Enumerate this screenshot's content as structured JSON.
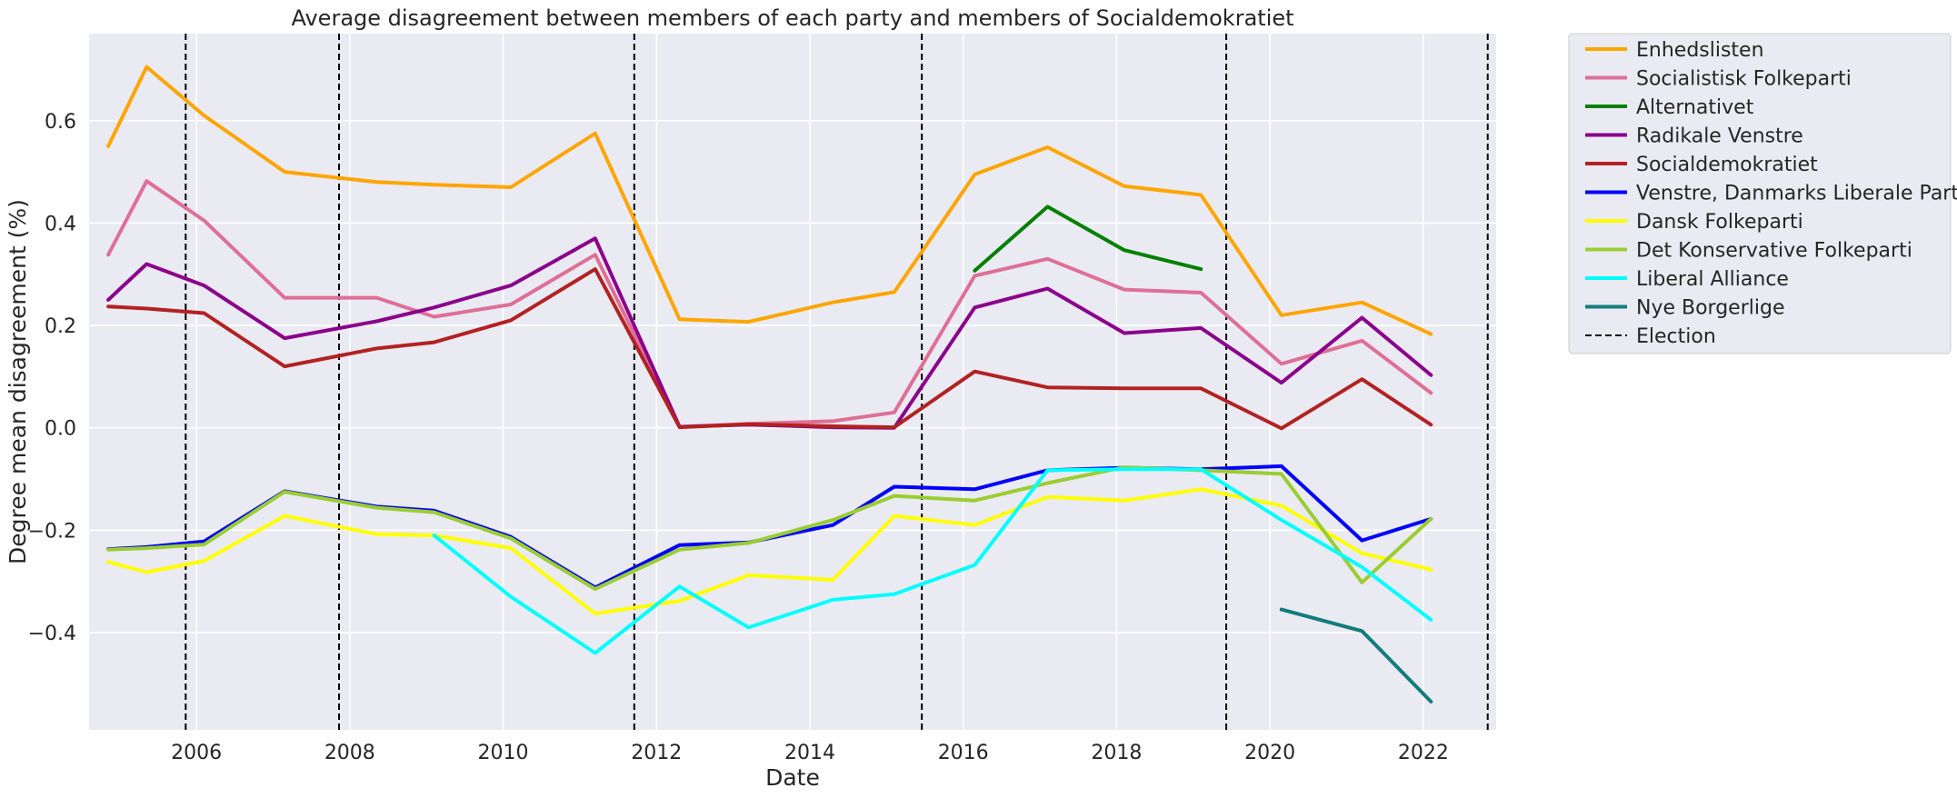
{
  "chart_data": {
    "type": "line",
    "title": "Average disagreement between members of each party and members of Socialdemokratiet",
    "xlabel": "Date",
    "ylabel": "Degree mean disagreement (%)",
    "xlim": [
      2004.6,
      2022.95
    ],
    "ylim": [
      -0.59,
      0.77
    ],
    "xticks": [
      2006,
      2008,
      2010,
      2012,
      2014,
      2016,
      2018,
      2020,
      2022
    ],
    "yticks": [
      -0.4,
      -0.2,
      0.0,
      0.2,
      0.4,
      0.6
    ],
    "ytick_labels": [
      "−0.4",
      "−0.2",
      "0.0",
      "0.2",
      "0.4",
      "0.6"
    ],
    "grid": true,
    "legend_position": "outside-upper-right",
    "elections": [
      2005.86,
      2007.86,
      2011.71,
      2015.46,
      2019.43,
      2022.84
    ],
    "election_label": "Election",
    "series": [
      {
        "name": "Enhedslisten",
        "color": "#ffa500",
        "x": [
          2004.85,
          2005.35,
          2006.1,
          2007.15,
          2008.35,
          2009.1,
          2010.1,
          2011.2,
          2012.3,
          2013.2,
          2014.3,
          2015.1,
          2016.15,
          2017.1,
          2018.1,
          2019.1,
          2020.15,
          2021.2,
          2022.1
        ],
        "y": [
          0.55,
          0.705,
          0.61,
          0.5,
          0.48,
          0.475,
          0.47,
          0.575,
          0.212,
          0.207,
          0.245,
          0.265,
          0.495,
          0.548,
          0.472,
          0.455,
          0.22,
          0.245,
          0.183
        ]
      },
      {
        "name": "Socialistisk Folkeparti",
        "color": "#de6f96",
        "x": [
          2004.85,
          2005.35,
          2006.1,
          2007.15,
          2008.35,
          2009.1,
          2010.1,
          2011.2,
          2012.3,
          2013.2,
          2014.3,
          2015.1,
          2016.15,
          2017.1,
          2018.1,
          2019.1,
          2020.15,
          2021.2,
          2022.1
        ],
        "y": [
          0.338,
          0.482,
          0.405,
          0.254,
          0.254,
          0.217,
          0.241,
          0.338,
          0.002,
          0.008,
          0.013,
          0.03,
          0.297,
          0.33,
          0.27,
          0.264,
          0.125,
          0.17,
          0.068
        ]
      },
      {
        "name": "Alternativet",
        "color": "#008000",
        "x": [
          2016.15,
          2017.1,
          2018.1,
          2019.1
        ],
        "y": [
          0.307,
          0.432,
          0.347,
          0.31
        ]
      },
      {
        "name": "Radikale Venstre",
        "color": "#8b008b",
        "x": [
          2004.85,
          2005.35,
          2006.1,
          2007.15,
          2008.35,
          2009.1,
          2010.1,
          2011.2,
          2012.3,
          2013.2,
          2014.3,
          2015.1,
          2016.15,
          2017.1,
          2018.1,
          2019.1,
          2020.15,
          2021.2,
          2022.1
        ],
        "y": [
          0.25,
          0.32,
          0.278,
          0.175,
          0.208,
          0.235,
          0.278,
          0.37,
          0.002,
          0.006,
          0.001,
          0.0,
          0.235,
          0.272,
          0.185,
          0.195,
          0.088,
          0.215,
          0.103
        ]
      },
      {
        "name": "Socialdemokratiet",
        "color": "#b22222",
        "x": [
          2004.85,
          2005.35,
          2006.1,
          2007.15,
          2008.35,
          2009.1,
          2010.1,
          2011.2,
          2012.3,
          2013.2,
          2014.3,
          2015.1,
          2016.15,
          2017.1,
          2018.1,
          2019.1,
          2020.15,
          2021.2,
          2022.1
        ],
        "y": [
          0.237,
          0.233,
          0.224,
          0.12,
          0.155,
          0.167,
          0.21,
          0.31,
          0.001,
          0.007,
          0.003,
          0.001,
          0.11,
          0.079,
          0.077,
          0.077,
          -0.001,
          0.095,
          0.006
        ]
      },
      {
        "name": "Venstre, Danmarks Liberale Parti",
        "color": "#0000ff",
        "x": [
          2004.85,
          2005.35,
          2006.1,
          2007.15,
          2008.35,
          2009.1,
          2010.1,
          2011.2,
          2012.3,
          2013.2,
          2014.3,
          2015.1,
          2016.15,
          2017.1,
          2018.1,
          2019.1,
          2020.15,
          2021.2,
          2022.1
        ],
        "y": [
          -0.237,
          -0.233,
          -0.222,
          -0.124,
          -0.154,
          -0.162,
          -0.213,
          -0.312,
          -0.229,
          -0.224,
          -0.19,
          -0.115,
          -0.12,
          -0.083,
          -0.078,
          -0.081,
          -0.075,
          -0.22,
          -0.178
        ]
      },
      {
        "name": "Dansk Folkeparti",
        "color": "#ffff00",
        "x": [
          2004.85,
          2005.35,
          2006.1,
          2007.15,
          2008.35,
          2009.1,
          2010.1,
          2011.2,
          2012.3,
          2013.2,
          2014.3,
          2015.1,
          2016.15,
          2017.1,
          2018.1,
          2019.1,
          2020.15,
          2021.2,
          2022.1
        ],
        "y": [
          -0.262,
          -0.282,
          -0.26,
          -0.172,
          -0.208,
          -0.21,
          -0.235,
          -0.363,
          -0.338,
          -0.288,
          -0.297,
          -0.172,
          -0.19,
          -0.135,
          -0.142,
          -0.12,
          -0.152,
          -0.245,
          -0.277
        ]
      },
      {
        "name": "Det Konservative Folkeparti",
        "color": "#9acd32",
        "x": [
          2004.85,
          2005.35,
          2006.1,
          2007.15,
          2008.35,
          2009.1,
          2010.1,
          2011.2,
          2012.3,
          2013.2,
          2014.3,
          2015.1,
          2016.15,
          2017.1,
          2018.1,
          2019.1,
          2020.15,
          2021.2,
          2022.1
        ],
        "y": [
          -0.238,
          -0.235,
          -0.228,
          -0.125,
          -0.156,
          -0.165,
          -0.216,
          -0.315,
          -0.238,
          -0.225,
          -0.18,
          -0.133,
          -0.142,
          -0.108,
          -0.077,
          -0.083,
          -0.09,
          -0.302,
          -0.178
        ]
      },
      {
        "name": "Liberal Alliance",
        "color": "#00ffff",
        "x": [
          2009.1,
          2010.1,
          2011.2,
          2012.3,
          2013.2,
          2014.3,
          2015.1,
          2016.15,
          2017.1,
          2018.1,
          2019.1,
          2020.15,
          2021.2,
          2022.1
        ],
        "y": [
          -0.21,
          -0.33,
          -0.44,
          -0.31,
          -0.39,
          -0.336,
          -0.325,
          -0.268,
          -0.083,
          -0.081,
          -0.081,
          -0.18,
          -0.272,
          -0.375
        ]
      },
      {
        "name": "Nye Borgerlige",
        "color": "#137c7c",
        "x": [
          2020.15,
          2021.2,
          2022.1
        ],
        "y": [
          -0.355,
          -0.397,
          -0.535
        ]
      }
    ]
  }
}
